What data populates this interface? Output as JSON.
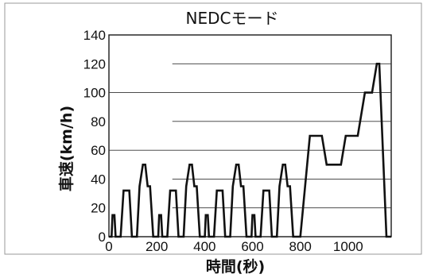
{
  "chart_data": {
    "type": "line",
    "title": "NEDCモード",
    "xlabel": "時間(秒)",
    "ylabel": "車速(km/h)",
    "xlim": [
      0,
      1180
    ],
    "ylim": [
      0,
      140
    ],
    "x_ticks": [
      0,
      200,
      400,
      600,
      800,
      1000
    ],
    "y_ticks": [
      0,
      20,
      40,
      60,
      80,
      100,
      120,
      140
    ],
    "grid": "horizontal",
    "series": [
      {
        "points": [
          [
            0,
            0
          ],
          [
            11,
            0
          ],
          [
            15,
            15
          ],
          [
            23,
            15
          ],
          [
            28,
            0
          ],
          [
            49,
            0
          ],
          [
            61,
            32
          ],
          [
            85,
            32
          ],
          [
            96,
            0
          ],
          [
            117,
            0
          ],
          [
            128,
            35
          ],
          [
            142,
            50
          ],
          [
            152,
            50
          ],
          [
            162,
            35
          ],
          [
            172,
            35
          ],
          [
            185,
            0
          ],
          [
            206,
            0
          ],
          [
            210,
            15
          ],
          [
            218,
            15
          ],
          [
            223,
            0
          ],
          [
            244,
            0
          ],
          [
            256,
            32
          ],
          [
            280,
            32
          ],
          [
            291,
            0
          ],
          [
            312,
            0
          ],
          [
            323,
            35
          ],
          [
            337,
            50
          ],
          [
            347,
            50
          ],
          [
            357,
            35
          ],
          [
            367,
            35
          ],
          [
            380,
            0
          ],
          [
            401,
            0
          ],
          [
            405,
            15
          ],
          [
            413,
            15
          ],
          [
            418,
            0
          ],
          [
            439,
            0
          ],
          [
            451,
            32
          ],
          [
            475,
            32
          ],
          [
            486,
            0
          ],
          [
            507,
            0
          ],
          [
            518,
            35
          ],
          [
            532,
            50
          ],
          [
            542,
            50
          ],
          [
            552,
            35
          ],
          [
            562,
            35
          ],
          [
            575,
            0
          ],
          [
            596,
            0
          ],
          [
            600,
            15
          ],
          [
            608,
            15
          ],
          [
            613,
            0
          ],
          [
            634,
            0
          ],
          [
            646,
            32
          ],
          [
            670,
            32
          ],
          [
            681,
            0
          ],
          [
            702,
            0
          ],
          [
            713,
            35
          ],
          [
            727,
            50
          ],
          [
            737,
            50
          ],
          [
            747,
            35
          ],
          [
            757,
            35
          ],
          [
            770,
            0
          ],
          [
            800,
            0
          ],
          [
            840,
            70
          ],
          [
            890,
            70
          ],
          [
            910,
            50
          ],
          [
            970,
            50
          ],
          [
            990,
            70
          ],
          [
            1040,
            70
          ],
          [
            1070,
            100
          ],
          [
            1100,
            100
          ],
          [
            1120,
            120
          ],
          [
            1130,
            120
          ],
          [
            1160,
            0
          ],
          [
            1180,
            0
          ]
        ]
      }
    ]
  }
}
